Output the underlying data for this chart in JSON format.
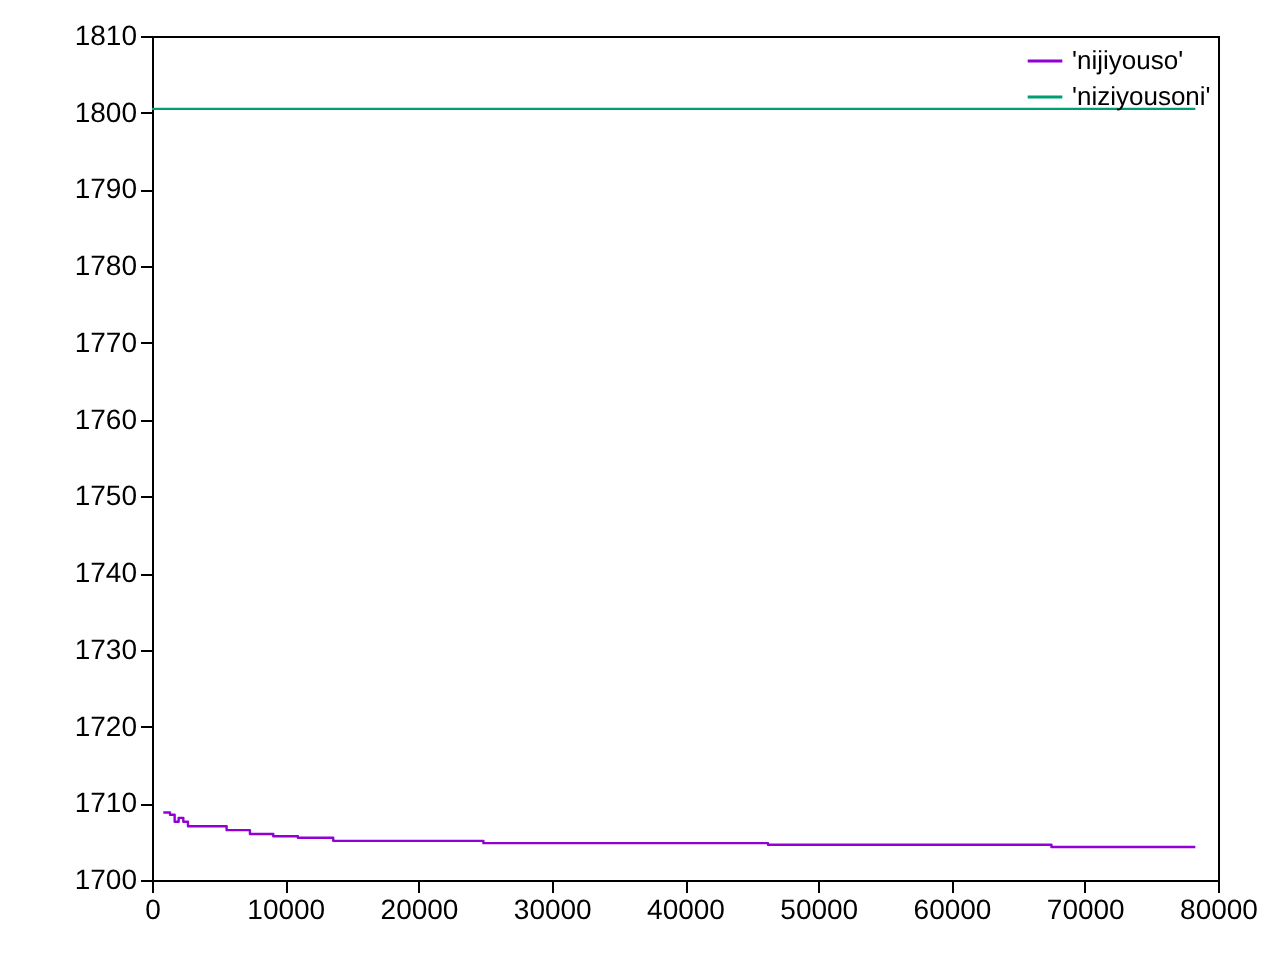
{
  "chart_data": {
    "type": "step",
    "xlim": [
      0,
      80000
    ],
    "ylim": [
      1700,
      1810
    ],
    "xticks": [
      0,
      10000,
      20000,
      30000,
      40000,
      50000,
      60000,
      70000,
      80000
    ],
    "yticks": [
      1700,
      1710,
      1720,
      1730,
      1740,
      1750,
      1760,
      1770,
      1780,
      1790,
      1800,
      1810
    ],
    "grid": false,
    "legend": "top right",
    "marker": "none",
    "line_style": "solid",
    "series": [
      {
        "name": "'nijiyouso'",
        "color": "#9400d3",
        "x": [
          850,
          1350,
          1700,
          2000,
          2350,
          2700,
          5600,
          7350,
          9100,
          10950,
          13600,
          24870,
          46230,
          67500,
          78300
        ],
        "values": [
          1708.8,
          1708.5,
          1707.6,
          1708.1,
          1707.6,
          1707.0,
          1706.5,
          1706.0,
          1705.7,
          1705.5,
          1705.1,
          1704.8,
          1704.6,
          1704.3,
          1704.3
        ]
      },
      {
        "name": "'niziyousoni'",
        "color": "#009e73",
        "x": [
          0,
          78300
        ],
        "values": [
          1800.5,
          1800.5
        ]
      }
    ]
  }
}
